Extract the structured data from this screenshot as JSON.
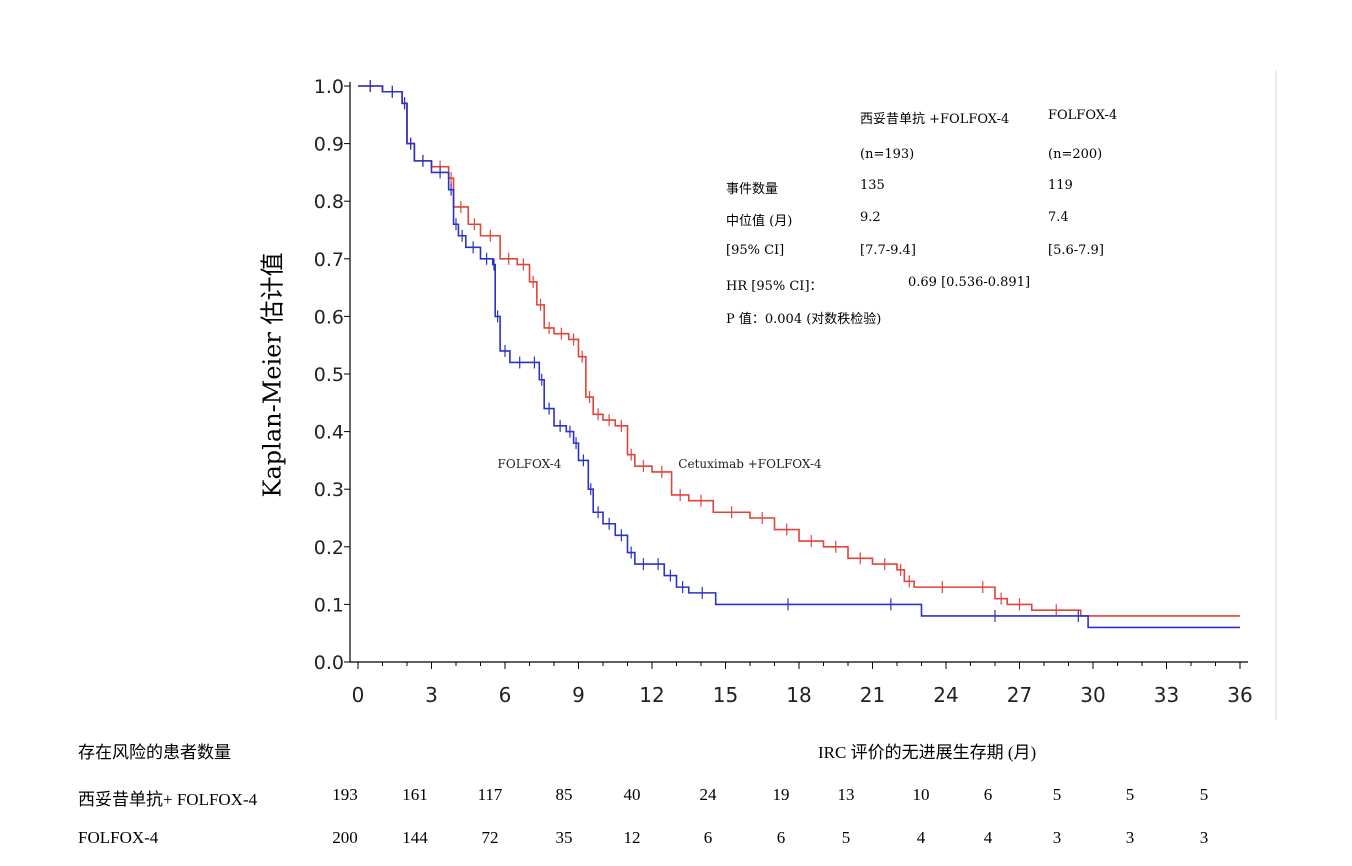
{
  "chart_data": {
    "type": "line",
    "ylabel": "Kaplan-Meier 估计值",
    "xlabel": "IRC 评价的无进展生存期 (月)",
    "xlim": [
      0,
      36
    ],
    "ylim": [
      0.0,
      1.0
    ],
    "x_ticks": [
      "0",
      "3",
      "6",
      "9",
      "12",
      "15",
      "18",
      "21",
      "24",
      "27",
      "30",
      "33",
      "36"
    ],
    "y_ticks": [
      "0.0",
      "0.1",
      "0.2",
      "0.3",
      "0.4",
      "0.5",
      "0.6",
      "0.7",
      "0.8",
      "0.9",
      "1.0"
    ],
    "series": [
      {
        "name": "Cetuximab +FOLFOX-4",
        "color": "#e0443a",
        "points": [
          [
            0,
            1.0
          ],
          [
            1.0,
            0.99
          ],
          [
            1.8,
            0.97
          ],
          [
            2.0,
            0.9
          ],
          [
            2.3,
            0.87
          ],
          [
            3.0,
            0.86
          ],
          [
            3.7,
            0.84
          ],
          [
            3.9,
            0.79
          ],
          [
            4.5,
            0.76
          ],
          [
            5.0,
            0.74
          ],
          [
            5.8,
            0.7
          ],
          [
            6.5,
            0.69
          ],
          [
            7.0,
            0.66
          ],
          [
            7.3,
            0.62
          ],
          [
            7.6,
            0.58
          ],
          [
            8.0,
            0.57
          ],
          [
            8.6,
            0.56
          ],
          [
            9.0,
            0.53
          ],
          [
            9.3,
            0.46
          ],
          [
            9.6,
            0.43
          ],
          [
            10.0,
            0.42
          ],
          [
            10.5,
            0.41
          ],
          [
            11.0,
            0.36
          ],
          [
            11.3,
            0.34
          ],
          [
            12.0,
            0.33
          ],
          [
            12.8,
            0.29
          ],
          [
            13.5,
            0.28
          ],
          [
            14.5,
            0.26
          ],
          [
            16.0,
            0.25
          ],
          [
            17.0,
            0.23
          ],
          [
            18.0,
            0.21
          ],
          [
            19.0,
            0.2
          ],
          [
            20.0,
            0.18
          ],
          [
            21.0,
            0.17
          ],
          [
            22.0,
            0.16
          ],
          [
            22.3,
            0.14
          ],
          [
            22.7,
            0.13
          ],
          [
            25.0,
            0.13
          ],
          [
            26.0,
            0.11
          ],
          [
            26.5,
            0.1
          ],
          [
            27.5,
            0.09
          ],
          [
            29.5,
            0.08
          ],
          [
            36.0,
            0.08
          ]
        ]
      },
      {
        "name": "FOLFOX-4",
        "color": "#2a32c8",
        "points": [
          [
            0,
            1.0
          ],
          [
            1.0,
            0.99
          ],
          [
            1.8,
            0.97
          ],
          [
            2.0,
            0.9
          ],
          [
            2.3,
            0.87
          ],
          [
            3.0,
            0.85
          ],
          [
            3.7,
            0.82
          ],
          [
            3.9,
            0.76
          ],
          [
            4.1,
            0.74
          ],
          [
            4.4,
            0.72
          ],
          [
            5.0,
            0.7
          ],
          [
            5.5,
            0.69
          ],
          [
            5.6,
            0.6
          ],
          [
            5.8,
            0.54
          ],
          [
            6.2,
            0.52
          ],
          [
            7.0,
            0.52
          ],
          [
            7.4,
            0.49
          ],
          [
            7.6,
            0.44
          ],
          [
            8.0,
            0.41
          ],
          [
            8.5,
            0.4
          ],
          [
            8.8,
            0.38
          ],
          [
            9.0,
            0.35
          ],
          [
            9.4,
            0.3
          ],
          [
            9.6,
            0.26
          ],
          [
            10.0,
            0.24
          ],
          [
            10.5,
            0.22
          ],
          [
            11.0,
            0.19
          ],
          [
            11.3,
            0.17
          ],
          [
            12.0,
            0.17
          ],
          [
            12.5,
            0.15
          ],
          [
            13.0,
            0.13
          ],
          [
            13.5,
            0.12
          ],
          [
            14.6,
            0.1
          ],
          [
            20.5,
            0.1
          ],
          [
            23.0,
            0.08
          ],
          [
            29.0,
            0.08
          ],
          [
            29.8,
            0.06
          ],
          [
            36.0,
            0.06
          ]
        ]
      }
    ],
    "curve_labels": [
      {
        "text": "FOLFOX-4",
        "x": 7.0,
        "y": 0.33
      },
      {
        "text": "Cetuximab +FOLFOX-4",
        "x": 16.0,
        "y": 0.33
      }
    ]
  },
  "stats": {
    "col1_header": "西妥昔单抗 +FOLFOX-4",
    "col2_header": "FOLFOX-4",
    "col1_n": "(n=193)",
    "col2_n": "(n=200)",
    "events_label": "事件数量",
    "events_1": "135",
    "events_2": "119",
    "median_label": "中位值 (月)",
    "median_1": "9.2",
    "median_2": "7.4",
    "ci_label": "[95% CI]",
    "ci_1": "[7.7-9.4]",
    "ci_2": "[5.6-7.9]",
    "hr_label": "HR [95% CI]：",
    "hr_value": "0.69 [0.536-0.891]",
    "p_line": "P 值：0.004 (对数秩检验)"
  },
  "risk_table": {
    "title": "存在风险的患者数量",
    "rows": [
      {
        "label": "西妥昔单抗+ FOLFOX-4",
        "values": [
          "193",
          "161",
          "117",
          "85",
          "40",
          "24",
          "19",
          "13",
          "10",
          "6",
          "5",
          "5",
          "5"
        ]
      },
      {
        "label": "FOLFOX-4",
        "values": [
          "200",
          "144",
          "72",
          "35",
          "12",
          "6",
          "6",
          "5",
          "4",
          "4",
          "3",
          "3",
          "3"
        ]
      }
    ]
  }
}
